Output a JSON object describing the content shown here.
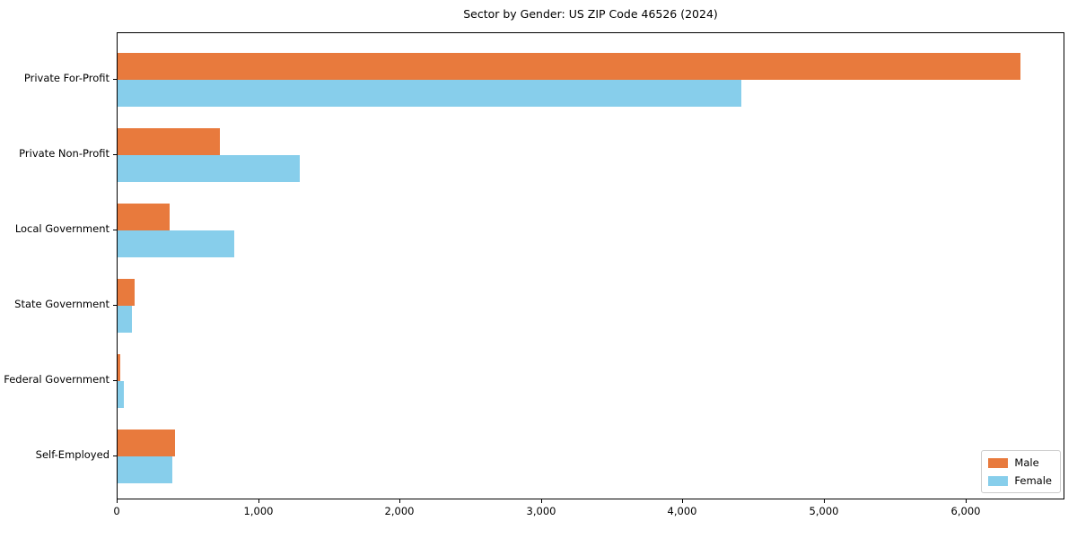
{
  "page": {
    "background": "#ffffff"
  },
  "chart_data": {
    "type": "bar",
    "orientation": "horizontal",
    "title": "Sector by Gender: US ZIP Code 46526 (2024)",
    "categories": [
      "Private For-Profit",
      "Private Non-Profit",
      "Local Government",
      "State Government",
      "Federal Government",
      "Self-Employed"
    ],
    "series": [
      {
        "name": "Male",
        "color": "#e87a3d",
        "values": [
          6380,
          725,
          370,
          120,
          20,
          405
        ]
      },
      {
        "name": "Female",
        "color": "#87ceeb",
        "values": [
          4410,
          1290,
          825,
          100,
          45,
          385
        ]
      }
    ],
    "xlabel": "",
    "ylabel": "",
    "xlim": [
      0,
      6700
    ],
    "xticks": [
      0,
      1000,
      2000,
      3000,
      4000,
      5000,
      6000
    ],
    "grid": false,
    "legend": {
      "position": "lower right",
      "entries": [
        "Male",
        "Female"
      ]
    }
  }
}
